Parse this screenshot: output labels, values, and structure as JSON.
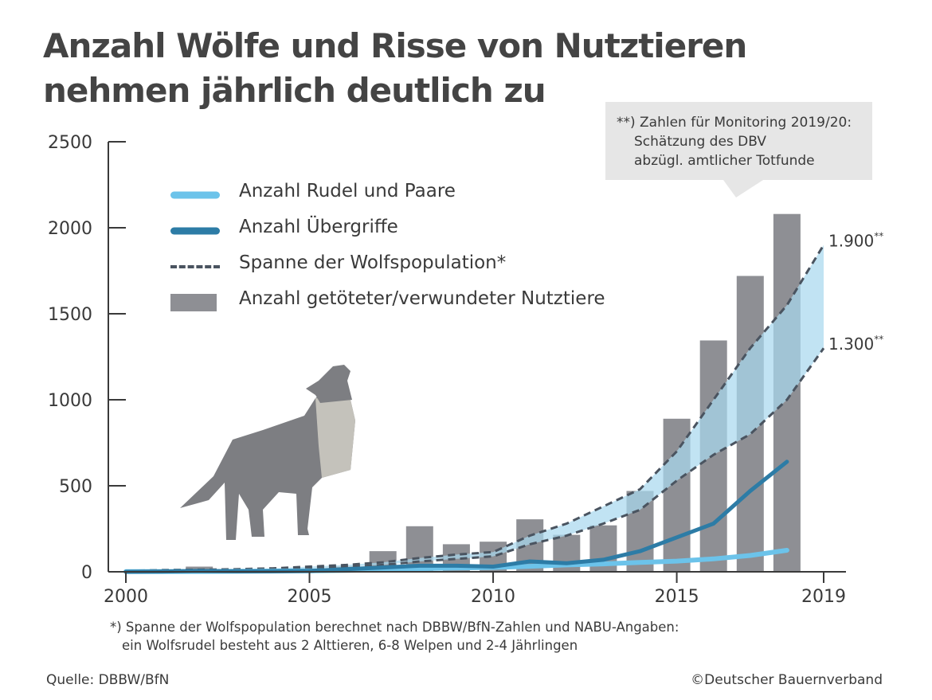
{
  "title_line1": "Anzahl Wölfe und Risse von Nutztieren",
  "title_line2": "nehmen jährlich deutlich zu",
  "callout": {
    "line1": "**) Zahlen für Monitoring 2019/20:",
    "line2": "Schätzung des DBV",
    "line3": "abzügl. amtlicher Totfunde"
  },
  "footnote": {
    "line1": "*) Spanne der Wolfspopulation berechnet nach DBBW/BfN-Zahlen und NABU-Angaben:",
    "line2": "ein Wolfsrudel besteht aus 2 Alttieren, 6-8 Welpen und 2-4 Jährlingen"
  },
  "source": "Quelle: DBBW/BfN",
  "copyright": "©Deutscher Bauernverband",
  "colors": {
    "bars": "#8e8f94",
    "packs_line": "#6cc3ea",
    "attacks_line": "#2d7ca6",
    "range_dash": "#4a5460",
    "range_fill": "#a9d8ef",
    "wolf_body": "#7d7e82",
    "wolf_chest": "#c4c2bb"
  },
  "illustration": {
    "icon": "howling-wolf-icon"
  },
  "chart_data": {
    "type": "bar",
    "xlim": [
      2000,
      2019
    ],
    "ylim": [
      0,
      2500
    ],
    "x_ticks": [
      "2000",
      "2005",
      "2010",
      "2015",
      "2019"
    ],
    "y_ticks": [
      "0",
      "500",
      "1000",
      "1500",
      "2000",
      "2500"
    ],
    "legend": {
      "position": "top-left",
      "entries": [
        "Anzahl Rudel und Paare",
        "Anzahl Übergriffe",
        "Spanne der Wolfspopulation*",
        "Anzahl getöteter/verwundeter Nutztiere"
      ]
    },
    "bars": {
      "name": "Anzahl getöteter/verwundeter Nutztiere",
      "x": [
        2000,
        2001,
        2002,
        2003,
        2004,
        2005,
        2006,
        2007,
        2008,
        2009,
        2010,
        2011,
        2012,
        2013,
        2014,
        2015,
        2016,
        2017,
        2018
      ],
      "values": [
        2,
        3,
        30,
        5,
        8,
        10,
        30,
        120,
        265,
        160,
        175,
        305,
        215,
        270,
        470,
        890,
        1345,
        1720,
        2080
      ]
    },
    "series": [
      {
        "name": "Anzahl Rudel und Paare",
        "x": [
          2000,
          2001,
          2002,
          2003,
          2004,
          2005,
          2006,
          2007,
          2008,
          2009,
          2010,
          2011,
          2012,
          2013,
          2014,
          2015,
          2016,
          2017,
          2018
        ],
        "values": [
          1,
          1,
          2,
          3,
          4,
          5,
          8,
          12,
          18,
          22,
          25,
          32,
          40,
          46,
          54,
          62,
          75,
          95,
          125
        ]
      },
      {
        "name": "Anzahl Übergriffe",
        "x": [
          2000,
          2001,
          2002,
          2003,
          2004,
          2005,
          2006,
          2007,
          2008,
          2009,
          2010,
          2011,
          2012,
          2013,
          2014,
          2015,
          2016,
          2017,
          2018
        ],
        "values": [
          0,
          2,
          5,
          3,
          3,
          5,
          15,
          25,
          35,
          35,
          30,
          60,
          50,
          70,
          120,
          200,
          280,
          470,
          640
        ]
      },
      {
        "name": "Spanne der Wolfspopulation* (obere Grenze)",
        "x": [
          2000,
          2001,
          2002,
          2003,
          2004,
          2005,
          2006,
          2007,
          2008,
          2009,
          2010,
          2011,
          2012,
          2013,
          2014,
          2015,
          2016,
          2017,
          2018,
          2019
        ],
        "values": [
          5,
          10,
          12,
          15,
          20,
          30,
          40,
          55,
          80,
          100,
          115,
          210,
          280,
          380,
          480,
          700,
          1000,
          1300,
          1550,
          1900
        ]
      },
      {
        "name": "Spanne der Wolfspopulation* (untere Grenze)",
        "x": [
          2000,
          2001,
          2002,
          2003,
          2004,
          2005,
          2006,
          2007,
          2008,
          2009,
          2010,
          2011,
          2012,
          2013,
          2014,
          2015,
          2016,
          2017,
          2018,
          2019
        ],
        "values": [
          3,
          6,
          8,
          10,
          14,
          20,
          28,
          40,
          60,
          75,
          90,
          160,
          210,
          280,
          360,
          530,
          680,
          800,
          1000,
          1300
        ]
      }
    ],
    "end_labels": [
      {
        "text": "1.900",
        "sup": "**",
        "value": 1900
      },
      {
        "text": "1.300",
        "sup": "**",
        "value": 1300
      }
    ]
  }
}
